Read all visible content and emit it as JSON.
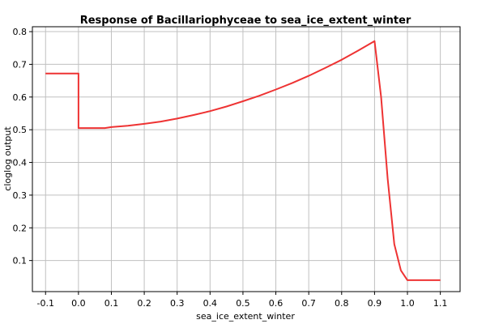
{
  "chart_data": {
    "type": "line",
    "title": "Response of Bacillariophyceae to sea_ice_extent_winter",
    "xlabel": "sea_ice_extent_winter",
    "ylabel": "cloglog output",
    "xlim": [
      -0.14,
      1.16
    ],
    "ylim": [
      0.005,
      0.815
    ],
    "xticks": [
      -0.1,
      0.0,
      0.1,
      0.2,
      0.3,
      0.4,
      0.5,
      0.6,
      0.7,
      0.8,
      0.9,
      1.0,
      1.1
    ],
    "xtick_labels": [
      "-0.1",
      "0.0",
      "0.1",
      "0.2",
      "0.3",
      "0.4",
      "0.5",
      "0.6",
      "0.7",
      "0.8",
      "0.9",
      "1.0",
      "1.1"
    ],
    "yticks": [
      0.1,
      0.2,
      0.3,
      0.4,
      0.5,
      0.6,
      0.7,
      0.8
    ],
    "ytick_labels": [
      "0.1",
      "0.2",
      "0.3",
      "0.4",
      "0.5",
      "0.6",
      "0.7",
      "0.8"
    ],
    "grid": true,
    "legend": "none",
    "line_color": "#ee3333",
    "series": [
      {
        "x": [
          -0.1,
          0.0,
          0.0,
          0.08,
          0.1,
          0.15,
          0.2,
          0.25,
          0.3,
          0.35,
          0.4,
          0.45,
          0.5,
          0.55,
          0.6,
          0.65,
          0.7,
          0.75,
          0.8,
          0.85,
          0.9,
          0.92,
          0.94,
          0.96,
          0.98,
          1.0,
          1.1
        ],
        "y": [
          0.672,
          0.672,
          0.505,
          0.505,
          0.508,
          0.512,
          0.518,
          0.525,
          0.534,
          0.545,
          0.557,
          0.571,
          0.587,
          0.604,
          0.623,
          0.643,
          0.665,
          0.689,
          0.714,
          0.742,
          0.771,
          0.6,
          0.35,
          0.15,
          0.07,
          0.04,
          0.04
        ]
      }
    ]
  }
}
